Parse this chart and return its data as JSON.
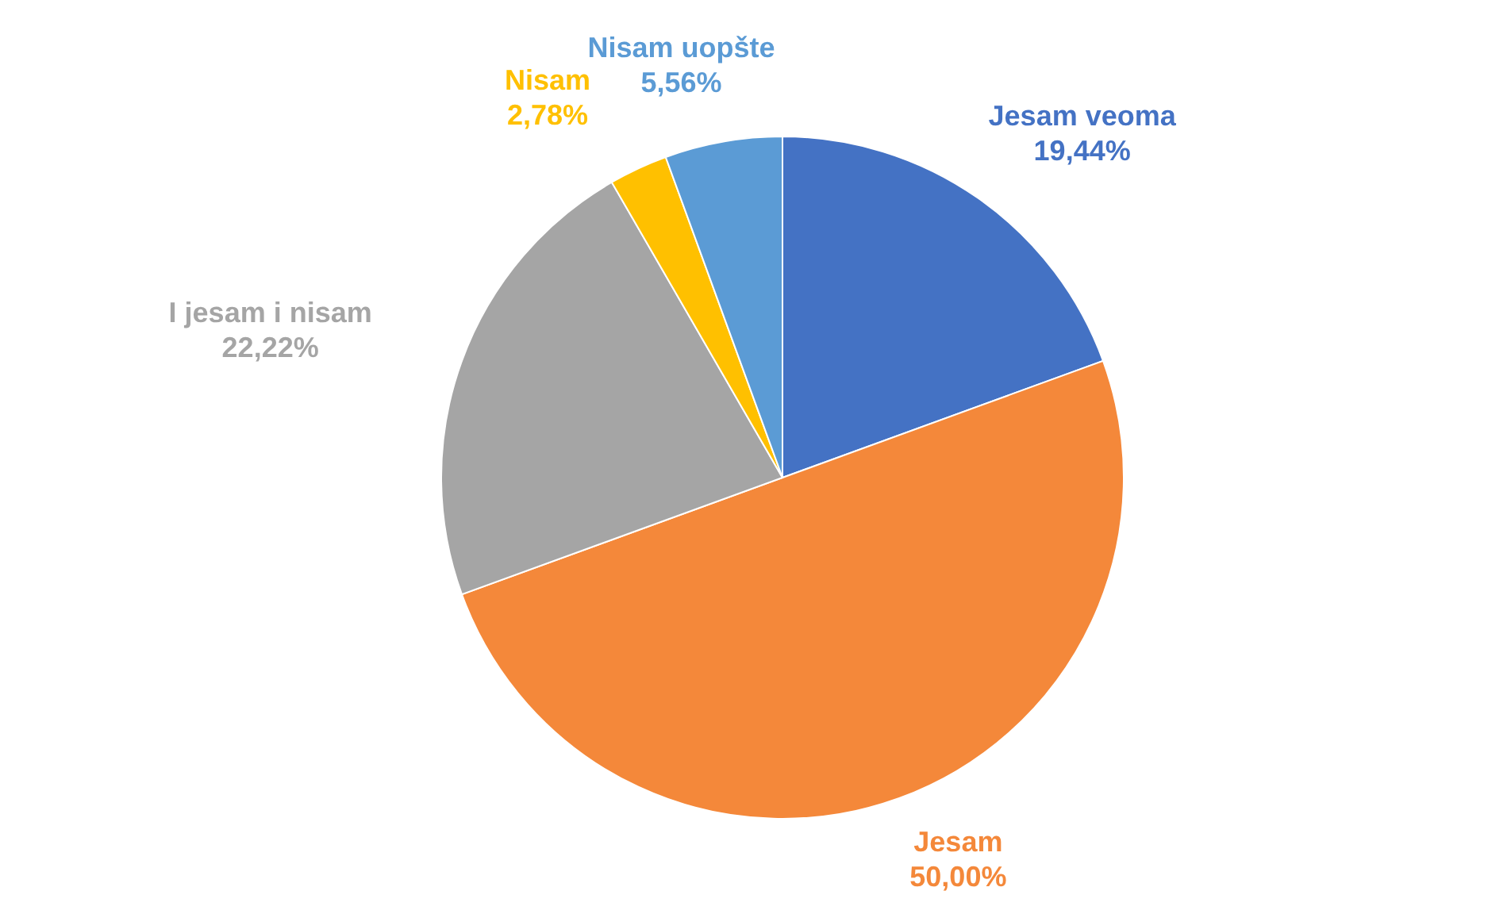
{
  "chart_data": {
    "type": "pie",
    "categories": [
      "Jesam veoma",
      "Jesam",
      "I jesam i nisam",
      "Nisam",
      "Nisam uopšte"
    ],
    "values": [
      19.44,
      50.0,
      22.22,
      2.78,
      5.56
    ],
    "value_labels": [
      "19,44%",
      "50,00%",
      "22,22%",
      "2,78%",
      "5,56%"
    ],
    "colors": [
      "#4472c4",
      "#f4883a",
      "#a5a5a5",
      "#ffc000",
      "#5b9bd5"
    ],
    "legend": false
  }
}
